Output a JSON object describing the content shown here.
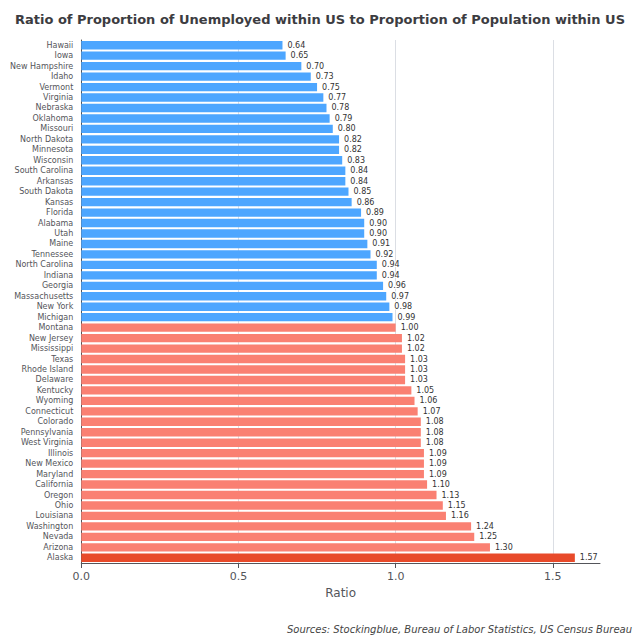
{
  "chart_data": {
    "type": "bar",
    "orientation": "horizontal",
    "title": "Ratio of Proportion of Unemployed within US to Proportion of Population within US",
    "xlabel": "Ratio",
    "annotation": "Sources: Stockingblue, Bureau of Labor Statistics, US Census Bureau",
    "categories": [
      "Hawaii",
      "Iowa",
      "New Hampshire",
      "Idaho",
      "Vermont",
      "Virginia",
      "Nebraska",
      "Oklahoma",
      "Missouri",
      "North Dakota",
      "Minnesota",
      "Wisconsin",
      "South Carolina",
      "Arkansas",
      "South Dakota",
      "Kansas",
      "Florida",
      "Alabama",
      "Utah",
      "Maine",
      "Tennessee",
      "North Carolina",
      "Indiana",
      "Georgia",
      "Massachusetts",
      "New York",
      "Michigan",
      "Montana",
      "New Jersey",
      "Mississippi",
      "Texas",
      "Rhode Island",
      "Delaware",
      "Kentucky",
      "Wyoming",
      "Connecticut",
      "Colorado",
      "Pennsylvania",
      "West Virginia",
      "Illinois",
      "New Mexico",
      "Maryland",
      "California",
      "Oregon",
      "Ohio",
      "Louisiana",
      "Washington",
      "Nevada",
      "Arizona",
      "Alaska"
    ],
    "values": [
      0.64,
      0.65,
      0.7,
      0.73,
      0.75,
      0.77,
      0.78,
      0.79,
      0.8,
      0.82,
      0.82,
      0.83,
      0.84,
      0.84,
      0.85,
      0.86,
      0.89,
      0.9,
      0.9,
      0.91,
      0.92,
      0.94,
      0.94,
      0.96,
      0.97,
      0.98,
      0.99,
      1.0,
      1.02,
      1.02,
      1.03,
      1.03,
      1.03,
      1.05,
      1.06,
      1.07,
      1.08,
      1.08,
      1.08,
      1.09,
      1.09,
      1.09,
      1.1,
      1.13,
      1.15,
      1.16,
      1.24,
      1.25,
      1.3,
      1.57
    ],
    "value_labels": [
      "0.64",
      "0.65",
      "0.70",
      "0.73",
      "0.75",
      "0.77",
      "0.78",
      "0.79",
      "0.80",
      "0.82",
      "0.82",
      "0.83",
      "0.84",
      "0.84",
      "0.85",
      "0.86",
      "0.89",
      "0.90",
      "0.90",
      "0.91",
      "0.92",
      "0.94",
      "0.94",
      "0.96",
      "0.97",
      "0.98",
      "0.99",
      "1.00",
      "1.02",
      "1.02",
      "1.03",
      "1.03",
      "1.03",
      "1.05",
      "1.06",
      "1.07",
      "1.08",
      "1.08",
      "1.08",
      "1.09",
      "1.09",
      "1.09",
      "1.10",
      "1.13",
      "1.15",
      "1.16",
      "1.24",
      "1.25",
      "1.30",
      "1.57"
    ],
    "colors": [
      "#4da6ff",
      "#4da6ff",
      "#4da6ff",
      "#4da6ff",
      "#4da6ff",
      "#4da6ff",
      "#4da6ff",
      "#4da6ff",
      "#4da6ff",
      "#4da6ff",
      "#4da6ff",
      "#4da6ff",
      "#4da6ff",
      "#4da6ff",
      "#4da6ff",
      "#4da6ff",
      "#4da6ff",
      "#4da6ff",
      "#4da6ff",
      "#4da6ff",
      "#4da6ff",
      "#4da6ff",
      "#4da6ff",
      "#4da6ff",
      "#4da6ff",
      "#4da6ff",
      "#4da6ff",
      "#FA8072",
      "#FA8072",
      "#FA8072",
      "#FA8072",
      "#FA8072",
      "#FA8072",
      "#FA8072",
      "#FA8072",
      "#FA8072",
      "#FA8072",
      "#FA8072",
      "#FA8072",
      "#FA8072",
      "#FA8072",
      "#FA8072",
      "#FA8072",
      "#FA8072",
      "#FA8072",
      "#FA8072",
      "#FA8072",
      "#FA8072",
      "#FA8072",
      "#e84a2a"
    ],
    "xlim": [
      0.0,
      1.65
    ],
    "xticks": [
      {
        "value": 0.0,
        "label": "0.0"
      },
      0.5,
      {
        "value": 1.0,
        "label": "1.0"
      },
      1.5
    ],
    "grid": true,
    "data_labels": true
  }
}
